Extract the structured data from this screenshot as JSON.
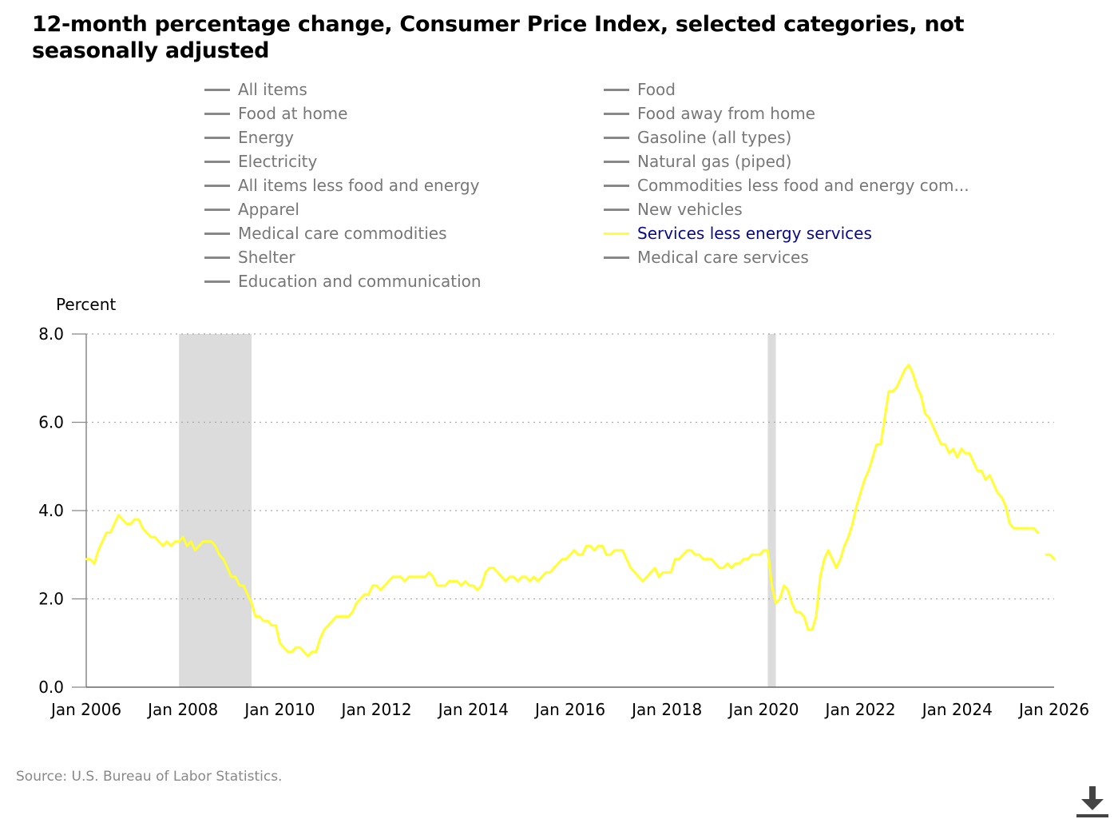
{
  "title": "12-month percentage change, Consumer Price Index, selected categories, not seasonally adjusted",
  "legend": {
    "left": [
      {
        "label": "All items",
        "active": false
      },
      {
        "label": "Food at home",
        "active": false
      },
      {
        "label": "Energy",
        "active": false
      },
      {
        "label": "Electricity",
        "active": false
      },
      {
        "label": "All items less food and energy",
        "active": false
      },
      {
        "label": "Apparel",
        "active": false
      },
      {
        "label": "Medical care commodities",
        "active": false
      },
      {
        "label": "Shelter",
        "active": false
      },
      {
        "label": "Education and communication",
        "active": false
      }
    ],
    "right": [
      {
        "label": "Food",
        "active": false
      },
      {
        "label": "Food away from home",
        "active": false
      },
      {
        "label": "Gasoline (all types)",
        "active": false
      },
      {
        "label": "Natural gas (piped)",
        "active": false
      },
      {
        "label": "Commodities less food and energy com...",
        "active": false
      },
      {
        "label": "New vehicles",
        "active": false
      },
      {
        "label": "Services less energy services",
        "active": true
      },
      {
        "label": "Medical care services",
        "active": false
      }
    ]
  },
  "colors": {
    "active_series": "#ffff33",
    "inactive_swatch": "#888888",
    "active_label": "#0a0a84",
    "recession": "#dcdcdc"
  },
  "source": "Source: U.S. Bureau of Labor Statistics.",
  "download_icon": "download-icon",
  "chart_data": {
    "type": "line",
    "ylabel": "Percent",
    "ylim": [
      0,
      8
    ],
    "yticks": [
      "0.0",
      "2.0",
      "4.0",
      "6.0",
      "8.0"
    ],
    "xlim": [
      "2006-01",
      "2026-01"
    ],
    "xticks": [
      "Jan 2006",
      "Jan 2008",
      "Jan 2010",
      "Jan 2012",
      "Jan 2014",
      "Jan 2016",
      "Jan 2018",
      "Jan 2020",
      "Jan 2022",
      "Jan 2024",
      "Jan 2026"
    ],
    "grid": "horizontal dotted",
    "recessions": [
      [
        "2007-12",
        "2009-06"
      ],
      [
        "2020-02",
        "2020-04"
      ]
    ],
    "series": [
      {
        "name": "Services less energy services",
        "x": [
          "2006-01",
          "2006-02",
          "2006-03",
          "2006-04",
          "2006-05",
          "2006-06",
          "2006-07",
          "2006-08",
          "2006-09",
          "2006-10",
          "2006-11",
          "2006-12",
          "2007-01",
          "2007-02",
          "2007-03",
          "2007-04",
          "2007-05",
          "2007-06",
          "2007-07",
          "2007-08",
          "2007-09",
          "2007-10",
          "2007-11",
          "2007-12",
          "2008-01",
          "2008-02",
          "2008-03",
          "2008-04",
          "2008-05",
          "2008-06",
          "2008-07",
          "2008-08",
          "2008-09",
          "2008-10",
          "2008-11",
          "2008-12",
          "2009-01",
          "2009-02",
          "2009-03",
          "2009-04",
          "2009-05",
          "2009-06",
          "2009-07",
          "2009-08",
          "2009-09",
          "2009-10",
          "2009-11",
          "2009-12",
          "2010-01",
          "2010-02",
          "2010-03",
          "2010-04",
          "2010-05",
          "2010-06",
          "2010-07",
          "2010-08",
          "2010-09",
          "2010-10",
          "2010-11",
          "2010-12",
          "2011-01",
          "2011-02",
          "2011-03",
          "2011-04",
          "2011-05",
          "2011-06",
          "2011-07",
          "2011-08",
          "2011-09",
          "2011-10",
          "2011-11",
          "2011-12",
          "2012-01",
          "2012-02",
          "2012-03",
          "2012-04",
          "2012-05",
          "2012-06",
          "2012-07",
          "2012-08",
          "2012-09",
          "2012-10",
          "2012-11",
          "2012-12",
          "2013-01",
          "2013-02",
          "2013-03",
          "2013-04",
          "2013-05",
          "2013-06",
          "2013-07",
          "2013-08",
          "2013-09",
          "2013-10",
          "2013-11",
          "2013-12",
          "2014-01",
          "2014-02",
          "2014-03",
          "2014-04",
          "2014-05",
          "2014-06",
          "2014-07",
          "2014-08",
          "2014-09",
          "2014-10",
          "2014-11",
          "2014-12",
          "2015-01",
          "2015-02",
          "2015-03",
          "2015-04",
          "2015-05",
          "2015-06",
          "2015-07",
          "2015-08",
          "2015-09",
          "2015-10",
          "2015-11",
          "2015-12",
          "2016-01",
          "2016-02",
          "2016-03",
          "2016-04",
          "2016-05",
          "2016-06",
          "2016-07",
          "2016-08",
          "2016-09",
          "2016-10",
          "2016-11",
          "2016-12",
          "2017-01",
          "2017-02",
          "2017-03",
          "2017-04",
          "2017-05",
          "2017-06",
          "2017-07",
          "2017-08",
          "2017-09",
          "2017-10",
          "2017-11",
          "2017-12",
          "2018-01",
          "2018-02",
          "2018-03",
          "2018-04",
          "2018-05",
          "2018-06",
          "2018-07",
          "2018-08",
          "2018-09",
          "2018-10",
          "2018-11",
          "2018-12",
          "2019-01",
          "2019-02",
          "2019-03",
          "2019-04",
          "2019-05",
          "2019-06",
          "2019-07",
          "2019-08",
          "2019-09",
          "2019-10",
          "2019-11",
          "2019-12",
          "2020-01",
          "2020-02",
          "2020-03",
          "2020-04",
          "2020-05",
          "2020-06",
          "2020-07",
          "2020-08",
          "2020-09",
          "2020-10",
          "2020-11",
          "2020-12",
          "2021-01",
          "2021-02",
          "2021-03",
          "2021-04",
          "2021-05",
          "2021-06",
          "2021-07",
          "2021-08",
          "2021-09",
          "2021-10",
          "2021-11",
          "2021-12",
          "2022-01",
          "2022-02",
          "2022-03",
          "2022-04",
          "2022-05",
          "2022-06",
          "2022-07",
          "2022-08",
          "2022-09",
          "2022-10",
          "2022-11",
          "2022-12",
          "2023-01",
          "2023-02",
          "2023-03",
          "2023-04",
          "2023-05",
          "2023-06",
          "2023-07",
          "2023-08",
          "2023-09",
          "2023-10",
          "2023-11",
          "2023-12",
          "2024-01",
          "2024-02",
          "2024-03",
          "2024-04",
          "2024-05",
          "2024-06",
          "2024-07",
          "2024-08",
          "2024-09",
          "2024-10",
          "2024-11",
          "2024-12",
          "2025-01",
          "2025-02",
          "2025-03",
          "2025-04",
          "2025-05",
          "2025-06",
          "2025-07",
          "2025-08",
          "2025-09",
          "2025-10",
          "2025-11",
          "2025-12",
          "2026-01"
        ],
        "values": [
          2.9,
          2.9,
          2.8,
          3.1,
          3.3,
          3.5,
          3.5,
          3.7,
          3.9,
          3.8,
          3.7,
          3.7,
          3.8,
          3.8,
          3.6,
          3.5,
          3.4,
          3.4,
          3.3,
          3.2,
          3.3,
          3.2,
          3.3,
          3.3,
          3.4,
          3.2,
          3.3,
          3.1,
          3.2,
          3.3,
          3.3,
          3.3,
          3.2,
          3.0,
          2.9,
          2.7,
          2.5,
          2.5,
          2.3,
          2.3,
          2.1,
          1.9,
          1.6,
          1.6,
          1.5,
          1.5,
          1.4,
          1.4,
          1.0,
          0.9,
          0.8,
          0.8,
          0.9,
          0.9,
          0.8,
          0.7,
          0.8,
          0.8,
          1.1,
          1.3,
          1.4,
          1.5,
          1.6,
          1.6,
          1.6,
          1.6,
          1.7,
          1.9,
          2.0,
          2.1,
          2.1,
          2.3,
          2.3,
          2.2,
          2.3,
          2.4,
          2.5,
          2.5,
          2.5,
          2.4,
          2.5,
          2.5,
          2.5,
          2.5,
          2.5,
          2.6,
          2.5,
          2.3,
          2.3,
          2.3,
          2.4,
          2.4,
          2.4,
          2.3,
          2.4,
          2.3,
          2.3,
          2.2,
          2.3,
          2.6,
          2.7,
          2.7,
          2.6,
          2.5,
          2.4,
          2.5,
          2.5,
          2.4,
          2.5,
          2.5,
          2.4,
          2.5,
          2.4,
          2.5,
          2.6,
          2.6,
          2.7,
          2.8,
          2.9,
          2.9,
          3.0,
          3.1,
          3.0,
          3.0,
          3.2,
          3.2,
          3.1,
          3.2,
          3.2,
          3.0,
          3.0,
          3.1,
          3.1,
          3.1,
          2.9,
          2.7,
          2.6,
          2.5,
          2.4,
          2.5,
          2.6,
          2.7,
          2.5,
          2.6,
          2.6,
          2.6,
          2.9,
          2.9,
          3.0,
          3.1,
          3.1,
          3.0,
          3.0,
          2.9,
          2.9,
          2.9,
          2.8,
          2.7,
          2.7,
          2.8,
          2.7,
          2.8,
          2.8,
          2.9,
          2.9,
          3.0,
          3.0,
          3.0,
          3.1,
          3.1,
          2.3,
          1.9,
          2.0,
          2.3,
          2.2,
          1.9,
          1.7,
          1.7,
          1.6,
          1.3,
          1.3,
          1.6,
          2.5,
          2.9,
          3.1,
          2.9,
          2.7,
          2.9,
          3.2,
          3.4,
          3.7,
          4.1,
          4.4,
          4.7,
          4.9,
          5.2,
          5.5,
          5.5,
          6.1,
          6.7,
          6.7,
          6.8,
          7.0,
          7.2,
          7.3,
          7.1,
          6.8,
          6.6,
          6.2,
          6.1,
          5.9,
          5.7,
          5.5,
          5.5,
          5.3,
          5.4,
          5.2,
          5.4,
          5.3,
          5.3,
          5.1,
          4.9,
          4.9,
          4.7,
          4.8,
          4.6,
          4.4,
          4.3,
          4.1,
          3.7,
          3.6,
          3.6,
          3.6,
          3.6,
          3.6,
          3.6,
          3.5,
          null,
          3.0,
          3.0,
          2.9
        ]
      }
    ]
  }
}
